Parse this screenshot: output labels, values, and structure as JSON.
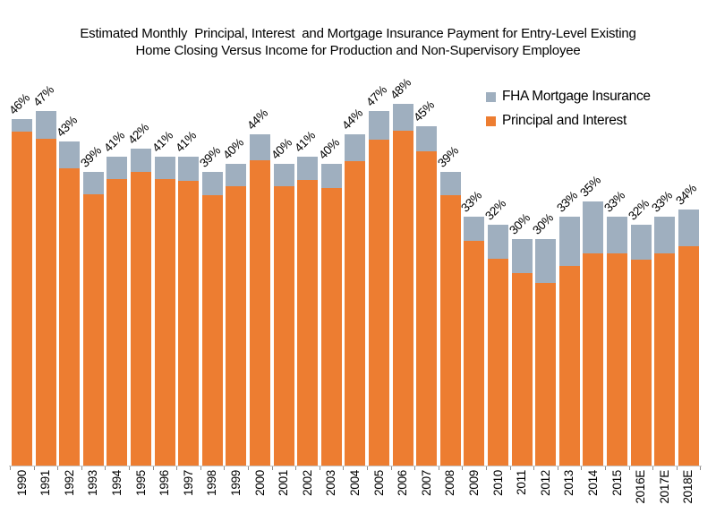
{
  "title": {
    "line1": "Estimated Monthly  Principal, Interest  and Mortgage Insurance Payment for Entry-Level Existing",
    "line2": "Home Closing Versus Income for Production and Non-Supervisory Employee"
  },
  "legend": {
    "items": [
      {
        "label": "FHA Mortgage Insurance",
        "color": "#9FAFBF"
      },
      {
        "label": "Principal and Interest",
        "color": "#ED7D31"
      }
    ]
  },
  "chart_data": {
    "type": "bar",
    "stacked": true,
    "title": "Estimated Monthly Principal, Interest and Mortgage Insurance Payment for Entry-Level Existing Home Closing Versus Income for Production and Non-Supervisory Employee",
    "xlabel": "",
    "ylabel": "",
    "unit": "% of income",
    "ylim": [
      0,
      50
    ],
    "grid": false,
    "legend_position": "top-right",
    "categories": [
      "1990",
      "1991",
      "1992",
      "1993",
      "1994",
      "1995",
      "1996",
      "1997",
      "1998",
      "1999",
      "2000",
      "2001",
      "2002",
      "2003",
      "2004",
      "2005",
      "2006",
      "2007",
      "2008",
      "2009",
      "2010",
      "2011",
      "2012",
      "2013",
      "2014",
      "2015",
      "2016E",
      "2017E",
      "2018E"
    ],
    "series": [
      {
        "name": "Principal and Interest",
        "color": "#ED7D31",
        "values": [
          44.3,
          43.4,
          39.4,
          36.0,
          38.0,
          39.0,
          38.0,
          37.8,
          35.9,
          37.0,
          40.5,
          37.1,
          37.9,
          36.8,
          40.4,
          43.2,
          44.4,
          41.7,
          35.9,
          29.8,
          27.4,
          25.5,
          24.2,
          26.5,
          28.1,
          28.1,
          27.3,
          28.1,
          29.1
        ]
      },
      {
        "name": "FHA Mortgage Insurance",
        "color": "#9FAFBF",
        "values": [
          1.7,
          3.6,
          3.6,
          3.0,
          3.0,
          3.0,
          3.0,
          3.2,
          3.1,
          3.0,
          3.5,
          2.9,
          3.1,
          3.2,
          3.6,
          3.8,
          3.6,
          3.3,
          3.1,
          3.2,
          4.6,
          4.5,
          5.8,
          6.5,
          6.9,
          4.9,
          4.7,
          4.9,
          4.9
        ]
      }
    ],
    "total_labels": [
      "46%",
      "47%",
      "43%",
      "39%",
      "41%",
      "42%",
      "41%",
      "41%",
      "39%",
      "40%",
      "44%",
      "40%",
      "41%",
      "40%",
      "44%",
      "47%",
      "48%",
      "45%",
      "39%",
      "33%",
      "32%",
      "30%",
      "30%",
      "33%",
      "35%",
      "33%",
      "32%",
      "33%",
      "34%"
    ],
    "axis": {
      "baseline_color": "#C6C6C6",
      "tick_color": "#8C8C8C"
    }
  }
}
